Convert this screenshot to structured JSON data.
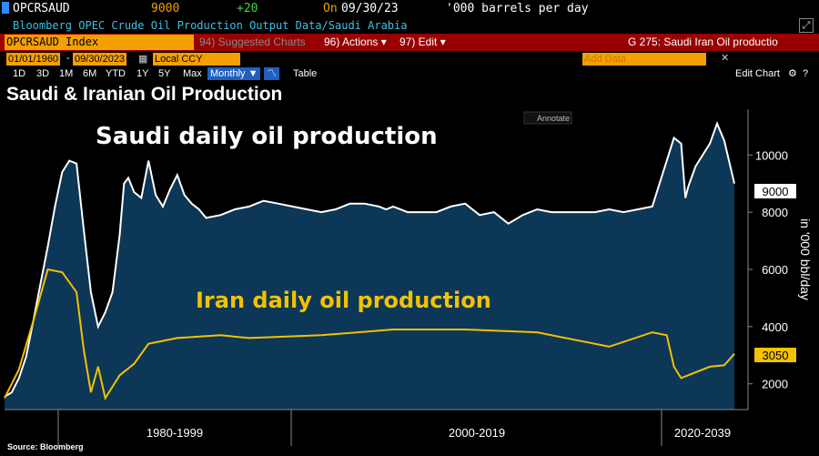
{
  "header": {
    "ticker": "OPCRSAUD",
    "last_value": "9000",
    "change": "+20",
    "on_label": "On",
    "date": "09/30/23",
    "units": "'000 barrels per day",
    "description": "Bloomberg OPEC Crude Oil Production Output Data/Saudi Arabia"
  },
  "toolbar": {
    "security": "OPCRSAUD Index",
    "suggested_charts": "94) Suggested Charts",
    "actions": "96) Actions ▾",
    "edit": "97) Edit ▾",
    "chart_name": "G 275: Saudi Iran Oil productio"
  },
  "date_range": {
    "start": "01/01/1960",
    "end": "09/30/2023",
    "currency": "Local CCY",
    "add_data_placeholder": "Add Data"
  },
  "periods": [
    "1D",
    "3D",
    "1M",
    "6M",
    "YTD",
    "1Y",
    "5Y",
    "Max"
  ],
  "frequency": "Monthly ▼",
  "table_label": "Table",
  "edit_chart_label": "Edit Chart",
  "annotate_label": "Annotate",
  "colors": {
    "saudi": "#ffffff",
    "iran": "#f2c200",
    "area": "#0d3a5c",
    "background": "#000000"
  },
  "chart_data": {
    "type": "line",
    "title": "Saudi & Iranian Oil Production",
    "ylabel": "in '000 bbl/day",
    "ylim": [
      1100,
      11600
    ],
    "y_ticks": [
      "2000",
      "4000",
      "6000",
      "8000",
      "10000"
    ],
    "x_sections": [
      "1980-1999",
      "2000-2019",
      "2020-2039"
    ],
    "annotations": [
      "Saudi daily oil production",
      "Iran daily oil production"
    ],
    "last_values": {
      "saudi": "9000",
      "iran": "3050"
    },
    "series": [
      {
        "key": "saudi",
        "x": [
          1973,
          1973.5,
          1974,
          1974.5,
          1975,
          1975.5,
          1976,
          1976.5,
          1977,
          1977.5,
          1978,
          1978.5,
          1979,
          1979.5,
          1980,
          1980.5,
          1981,
          1981.3,
          1981.6,
          1982,
          1982.5,
          1983,
          1983.5,
          1984,
          1984.5,
          1985,
          1985.5,
          1986,
          1986.5,
          1987,
          1988,
          1989,
          1990,
          1990.5,
          1991,
          1992,
          1993,
          1994,
          1995,
          1996,
          1997,
          1998,
          1999,
          1999.5,
          2000,
          2001,
          2002,
          2003,
          2004,
          2005,
          2006,
          2007,
          2008,
          2009,
          2010,
          2011,
          2012,
          2013,
          2014,
          2015,
          2016,
          2017,
          2018,
          2019,
          2019.5,
          2020,
          2020.3,
          2020.5,
          2021,
          2022,
          2022.5,
          2023,
          2023.7
        ],
        "values": [
          1550,
          1700,
          2200,
          2950,
          4200,
          5500,
          6800,
          8200,
          9400,
          9800,
          9700,
          7400,
          5200,
          4000,
          4500,
          5200,
          7200,
          9000,
          9200,
          8700,
          8500,
          9800,
          8600,
          8200,
          8800,
          9300,
          8600,
          8300,
          8100,
          7800,
          7900,
          8100,
          8200,
          8300,
          8400,
          8300,
          8200,
          8100,
          8000,
          8100,
          8300,
          8300,
          8200,
          8100,
          8200,
          8000,
          8000,
          8000,
          8200,
          8300,
          7900,
          8000,
          7600,
          7900,
          8100,
          8000,
          8000,
          8000,
          8000,
          8100,
          8000,
          8100,
          8200,
          9800,
          10600,
          10400,
          8500,
          8900,
          9600,
          10400,
          11100,
          10500,
          9000
        ],
        "display_note": "values above 1973 are read left to right along the white line"
      }
    ]
  }
}
